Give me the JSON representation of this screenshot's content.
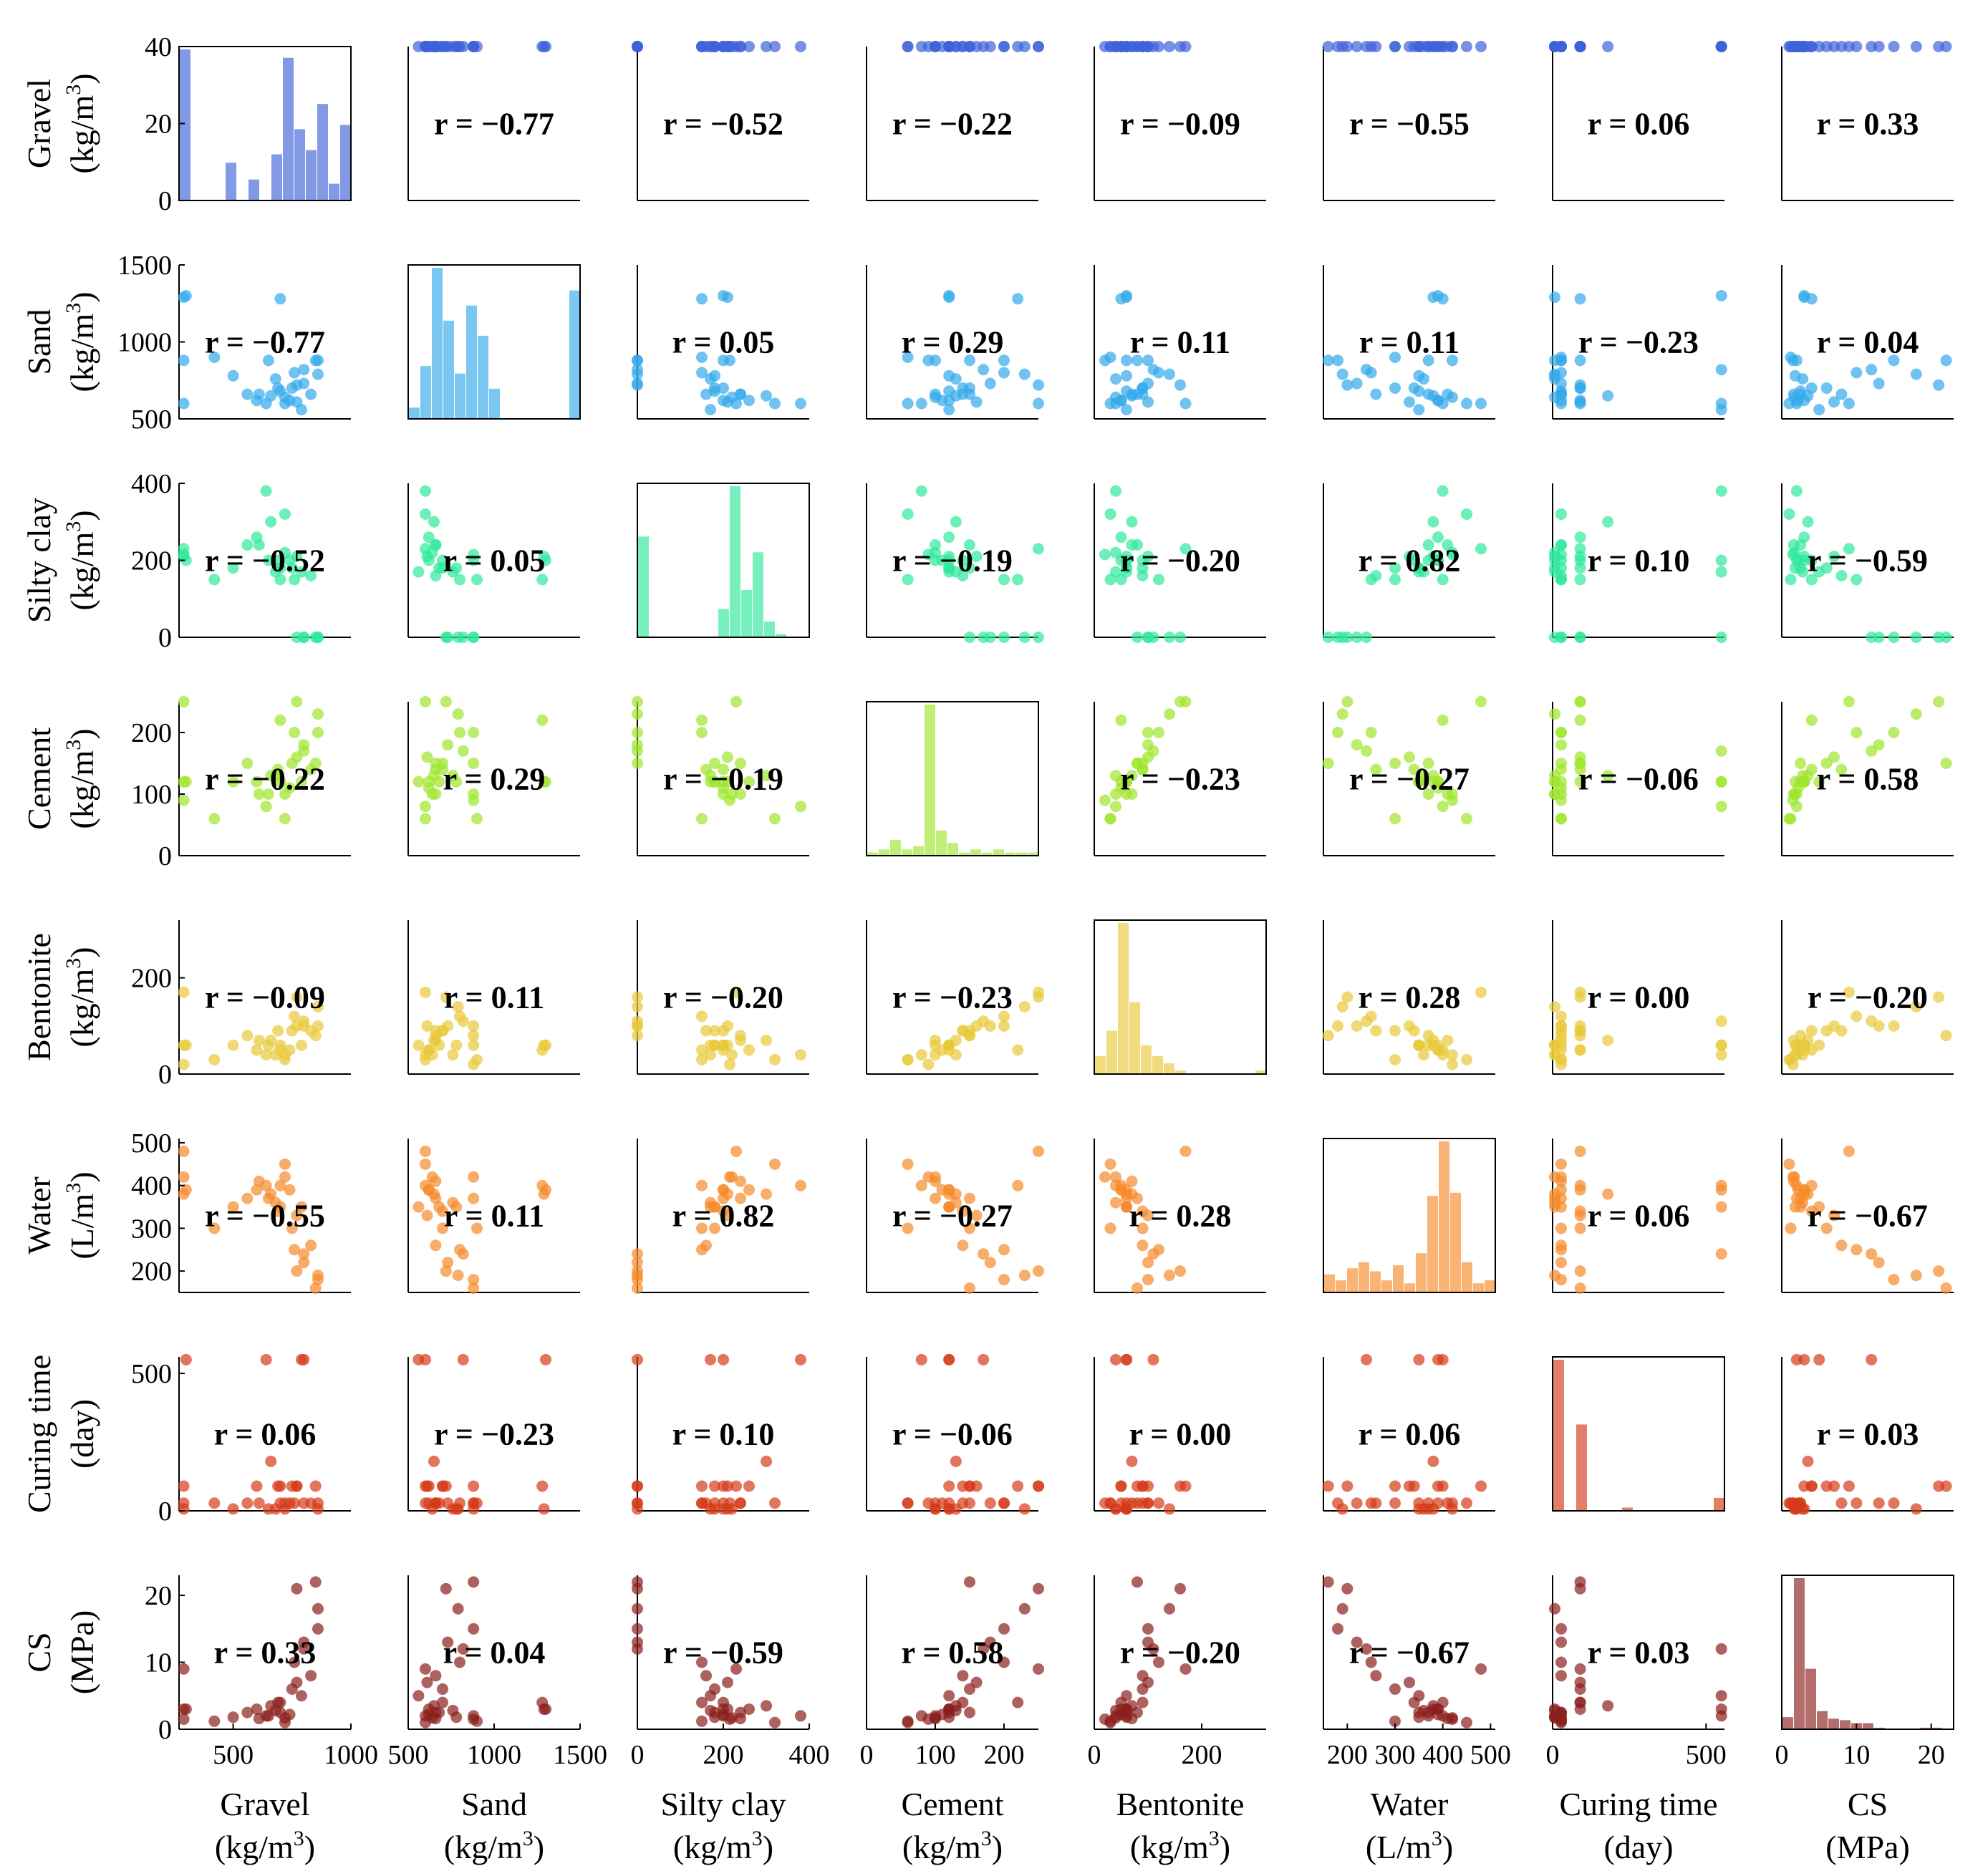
{
  "chart_data": {
    "type": "scatter-matrix",
    "title": "",
    "variables": [
      {
        "key": "gravel",
        "name": "Gravel",
        "unit": "(kg/m",
        "unit_sup": "3",
        "unit_end": ")",
        "color": "#3f63d8",
        "range": [
          270,
          1000
        ],
        "ticks": [
          {
            "v": 500,
            "l": "500"
          },
          {
            "v": 1000,
            "l": "1000"
          }
        ],
        "yticks": [
          {
            "v": 0,
            "l": "0"
          },
          {
            "v": 20,
            "l": "20"
          },
          {
            "v": 40,
            "l": "40"
          }
        ],
        "yrange": [
          0,
          40
        ],
        "hist": [
          36,
          0,
          0,
          0,
          9,
          0,
          5,
          0,
          11,
          34,
          17,
          12,
          23,
          4,
          18
        ]
      },
      {
        "key": "sand",
        "name": "Sand",
        "unit": "(kg/m",
        "unit_sup": "3",
        "unit_end": ")",
        "color": "#33aaea",
        "range": [
          500,
          1500
        ],
        "ticks": [
          {
            "v": 500,
            "l": "500"
          },
          {
            "v": 1000,
            "l": "1000"
          },
          {
            "v": 1500,
            "l": "1500"
          }
        ],
        "yticks": [
          {
            "v": 500,
            "l": "500"
          },
          {
            "v": 1000,
            "l": "1000"
          },
          {
            "v": 1500,
            "l": "1500"
          }
        ],
        "yrange": [
          500,
          1500
        ],
        "hist": [
          3,
          14,
          40,
          26,
          12,
          30,
          22,
          8,
          0,
          0,
          0,
          0,
          0,
          0,
          34
        ]
      },
      {
        "key": "silty",
        "name": "Silty clay",
        "unit": "(kg/m",
        "unit_sup": "3",
        "unit_end": ")",
        "color": "#2ee89a",
        "range": [
          0,
          400
        ],
        "ticks": [
          {
            "v": 0,
            "l": "0"
          },
          {
            "v": 200,
            "l": "200"
          },
          {
            "v": 400,
            "l": "400"
          }
        ],
        "yticks": [
          {
            "v": 0,
            "l": "0"
          },
          {
            "v": 200,
            "l": "200"
          },
          {
            "v": 400,
            "l": "400"
          }
        ],
        "yrange": [
          0,
          400
        ],
        "hist": [
          32,
          0,
          0,
          0,
          0,
          0,
          0,
          9,
          48,
          15,
          27,
          5,
          1,
          0,
          0
        ]
      },
      {
        "key": "cement",
        "name": "Cement",
        "unit": "(kg/m",
        "unit_sup": "3",
        "unit_end": ")",
        "color": "#9ee52c",
        "range": [
          0,
          250
        ],
        "ticks": [
          {
            "v": 0,
            "l": "0"
          },
          {
            "v": 100,
            "l": "100"
          },
          {
            "v": 200,
            "l": "200"
          }
        ],
        "yticks": [
          {
            "v": 0,
            "l": "0"
          },
          {
            "v": 100,
            "l": "100"
          },
          {
            "v": 200,
            "l": "200"
          }
        ],
        "yrange": [
          0,
          250
        ],
        "hist": [
          1,
          2,
          5,
          2,
          3,
          48,
          8,
          4,
          1,
          2,
          1,
          2,
          1,
          1,
          1
        ]
      },
      {
        "key": "bentonite",
        "name": "Bentonite",
        "unit": "(kg/m",
        "unit_sup": "3",
        "unit_end": ")",
        "color": "#e8c93a",
        "range": [
          0,
          320
        ],
        "ticks": [
          {
            "v": 0,
            "l": "0"
          },
          {
            "v": 200,
            "l": "200"
          }
        ],
        "yticks": [
          {
            "v": 0,
            "l": "0"
          },
          {
            "v": 200,
            "l": "200"
          }
        ],
        "yrange": [
          0,
          320
        ],
        "hist": [
          5,
          12,
          42,
          20,
          8,
          5,
          3,
          1,
          0,
          0,
          0,
          0,
          0,
          0,
          1
        ]
      },
      {
        "key": "water",
        "name": "Water",
        "unit": "(L/m",
        "unit_sup": "3",
        "unit_end": ")",
        "color": "#f58a2b",
        "range": [
          150,
          510
        ],
        "ticks": [
          {
            "v": 200,
            "l": "200"
          },
          {
            "v": 300,
            "l": "300"
          },
          {
            "v": 400,
            "l": "400"
          },
          {
            "v": 500,
            "l": "500"
          }
        ],
        "yticks": [
          {
            "v": 200,
            "l": "200"
          },
          {
            "v": 300,
            "l": "300"
          },
          {
            "v": 400,
            "l": "400"
          },
          {
            "v": 500,
            "l": "500"
          }
        ],
        "yrange": [
          150,
          510
        ],
        "hist": [
          6,
          4,
          8,
          10,
          7,
          4,
          9,
          3,
          13,
          32,
          50,
          33,
          10,
          3,
          4
        ]
      },
      {
        "key": "curing",
        "name": "Curing time",
        "unit": "(day)",
        "unit_sup": "",
        "unit_end": "",
        "color": "#d43a18",
        "range": [
          0,
          560
        ],
        "ticks": [
          {
            "v": 0,
            "l": "0"
          },
          {
            "v": 500,
            "l": "500"
          }
        ],
        "yticks": [
          {
            "v": 0,
            "l": "0"
          },
          {
            "v": 500,
            "l": "500"
          }
        ],
        "yrange": [
          0,
          560
        ],
        "hist": [
          140,
          0,
          80,
          0,
          0,
          0,
          3,
          0,
          0,
          0,
          0,
          0,
          0,
          0,
          12
        ]
      },
      {
        "key": "cs",
        "name": "CS",
        "unit": "(MPa)",
        "unit_sup": "",
        "unit_end": "",
        "color": "#8a1f1c",
        "range": [
          0,
          23
        ],
        "ticks": [
          {
            "v": 0,
            "l": "0"
          },
          {
            "v": 10,
            "l": "10"
          },
          {
            "v": 20,
            "l": "20"
          }
        ],
        "yticks": [
          {
            "v": 0,
            "l": "0"
          },
          {
            "v": 10,
            "l": "10"
          },
          {
            "v": 20,
            "l": "20"
          }
        ],
        "yrange": [
          0,
          23
        ],
        "hist": [
          8,
          100,
          40,
          12,
          7,
          6,
          4,
          4,
          1,
          0,
          0,
          0,
          1,
          1,
          0
        ]
      }
    ],
    "correlations": [
      [
        null,
        -0.77,
        -0.52,
        -0.22,
        -0.09,
        -0.55,
        0.06,
        0.33
      ],
      [
        -0.77,
        null,
        0.05,
        0.29,
        0.11,
        0.11,
        -0.23,
        0.04
      ],
      [
        -0.52,
        0.05,
        null,
        -0.19,
        -0.2,
        0.82,
        0.1,
        -0.59
      ],
      [
        -0.22,
        0.29,
        -0.19,
        null,
        -0.23,
        -0.27,
        -0.06,
        0.58
      ],
      [
        -0.09,
        0.11,
        -0.2,
        -0.23,
        null,
        0.28,
        0.0,
        -0.2
      ],
      [
        -0.55,
        0.11,
        0.82,
        -0.27,
        0.28,
        null,
        0.06,
        -0.67
      ],
      [
        0.06,
        -0.23,
        0.1,
        -0.06,
        0.0,
        0.06,
        null,
        0.03
      ],
      [
        0.33,
        0.04,
        -0.59,
        0.58,
        -0.2,
        -0.67,
        0.03,
        null
      ]
    ],
    "r_labels": [
      [
        "",
        "r = −0.77",
        "r = −0.52",
        "r = −0.22",
        "r = −0.09",
        "r = −0.55",
        "r = 0.06",
        "r = 0.33"
      ],
      [
        "r = −0.77",
        "",
        "r = 0.05",
        "r = 0.29",
        "r = 0.11",
        "r = 0.11",
        "r = −0.23",
        "r = 0.04"
      ],
      [
        "r = −0.52",
        "r = 0.05",
        "",
        "r = −0.19",
        "r = −0.20",
        "r = 0.82",
        "r = 0.10",
        "r = −0.59"
      ],
      [
        "r = −0.22",
        "r = 0.29",
        "r = −0.19",
        "",
        "r = −0.23",
        "r = −0.27",
        "r = −0.06",
        "r = 0.58"
      ],
      [
        "r = −0.09",
        "r = 0.11",
        "r = −0.20",
        "r = −0.23",
        "",
        "r = 0.28",
        "r = 0.00",
        "r = −0.20"
      ],
      [
        "r = −0.55",
        "r = 0.11",
        "r = 0.82",
        "r = −0.27",
        "r = 0.28",
        "",
        "r = 0.06",
        "r = −0.67"
      ],
      [
        "r = 0.06",
        "r = −0.23",
        "r = 0.10",
        "r = −0.06",
        "r = 0.00",
        "r = 0.06",
        "",
        "r = 0.03"
      ],
      [
        "r = 0.33",
        "r = 0.04",
        "r = −0.59",
        "r = 0.58",
        "r = −0.20",
        "r = −0.67",
        "r = 0.03",
        ""
      ]
    ],
    "samples": [
      [
        290,
        1290,
        210,
        120,
        60,
        380,
        7,
        3
      ],
      [
        290,
        880,
        215,
        90,
        20,
        420,
        28,
        1.5
      ],
      [
        290,
        600,
        230,
        250,
        170,
        480,
        90,
        9
      ],
      [
        420,
        900,
        150,
        60,
        30,
        300,
        28,
        1.2
      ],
      [
        500,
        780,
        180,
        120,
        60,
        350,
        7,
        1.8
      ],
      [
        560,
        660,
        240,
        150,
        80,
        370,
        28,
        2.5
      ],
      [
        600,
        620,
        260,
        120,
        50,
        390,
        90,
        3
      ],
      [
        640,
        600,
        380,
        80,
        40,
        400,
        550,
        2
      ],
      [
        660,
        650,
        300,
        130,
        70,
        380,
        180,
        3.5
      ],
      [
        690,
        700,
        200,
        140,
        90,
        340,
        90,
        4
      ],
      [
        700,
        680,
        180,
        120,
        60,
        350,
        28,
        2.5
      ],
      [
        720,
        640,
        220,
        100,
        40,
        420,
        7,
        1.7
      ],
      [
        740,
        620,
        200,
        110,
        50,
        390,
        28,
        2.2
      ],
      [
        750,
        700,
        180,
        150,
        90,
        300,
        90,
        6
      ],
      [
        760,
        800,
        150,
        200,
        120,
        250,
        28,
        10
      ],
      [
        770,
        720,
        0,
        250,
        160,
        200,
        90,
        21
      ],
      [
        790,
        560,
        170,
        120,
        60,
        350,
        550,
        5
      ],
      [
        800,
        730,
        0,
        180,
        100,
        220,
        28,
        13
      ],
      [
        850,
        880,
        0,
        150,
        80,
        160,
        90,
        22
      ],
      [
        860,
        880,
        0,
        200,
        100,
        180,
        28,
        15
      ],
      [
        300,
        1300,
        200,
        120,
        60,
        390,
        550,
        3
      ],
      [
        610,
        660,
        240,
        100,
        70,
        410,
        28,
        1.6
      ],
      [
        680,
        760,
        170,
        130,
        40,
        360,
        7,
        2.8
      ],
      [
        720,
        600,
        320,
        60,
        30,
        450,
        28,
        1
      ],
      [
        770,
        610,
        210,
        160,
        100,
        330,
        90,
        7
      ],
      [
        830,
        660,
        160,
        140,
        90,
        260,
        28,
        8
      ],
      [
        700,
        1280,
        150,
        220,
        50,
        400,
        90,
        4
      ],
      [
        650,
        880,
        200,
        100,
        60,
        370,
        7,
        2
      ],
      [
        800,
        820,
        0,
        170,
        110,
        240,
        550,
        12
      ],
      [
        860,
        790,
        0,
        230,
        140,
        190,
        7,
        18
      ]
    ]
  },
  "axis_labels": {
    "units_sup": "3"
  }
}
